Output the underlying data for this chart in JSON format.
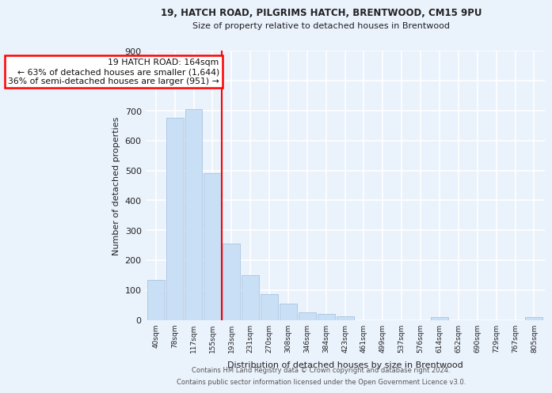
{
  "title1": "19, HATCH ROAD, PILGRIMS HATCH, BRENTWOOD, CM15 9PU",
  "title2": "Size of property relative to detached houses in Brentwood",
  "xlabel": "Distribution of detached houses by size in Brentwood",
  "ylabel": "Number of detached properties",
  "bin_labels": [
    "40sqm",
    "78sqm",
    "117sqm",
    "155sqm",
    "193sqm",
    "231sqm",
    "270sqm",
    "308sqm",
    "346sqm",
    "384sqm",
    "423sqm",
    "461sqm",
    "499sqm",
    "537sqm",
    "576sqm",
    "614sqm",
    "652sqm",
    "690sqm",
    "729sqm",
    "767sqm",
    "805sqm"
  ],
  "bar_heights": [
    135,
    675,
    705,
    490,
    255,
    150,
    87,
    55,
    25,
    20,
    13,
    0,
    0,
    0,
    0,
    10,
    0,
    0,
    0,
    0,
    10
  ],
  "bar_color": "#c9dff5",
  "bar_edge_color": "#a8c4e0",
  "red_line_x": 3.5,
  "annotation_line1": "19 HATCH ROAD: 164sqm",
  "annotation_line2": "← 63% of detached houses are smaller (1,644)",
  "annotation_line3": "36% of semi-detached houses are larger (951) →",
  "annotation_box_color": "white",
  "annotation_box_edge": "red",
  "footer1": "Contains HM Land Registry data © Crown copyright and database right 2024.",
  "footer2": "Contains public sector information licensed under the Open Government Licence v3.0.",
  "ylim": [
    0,
    900
  ],
  "background_color": "#eaf2fc",
  "grid_color": "white"
}
